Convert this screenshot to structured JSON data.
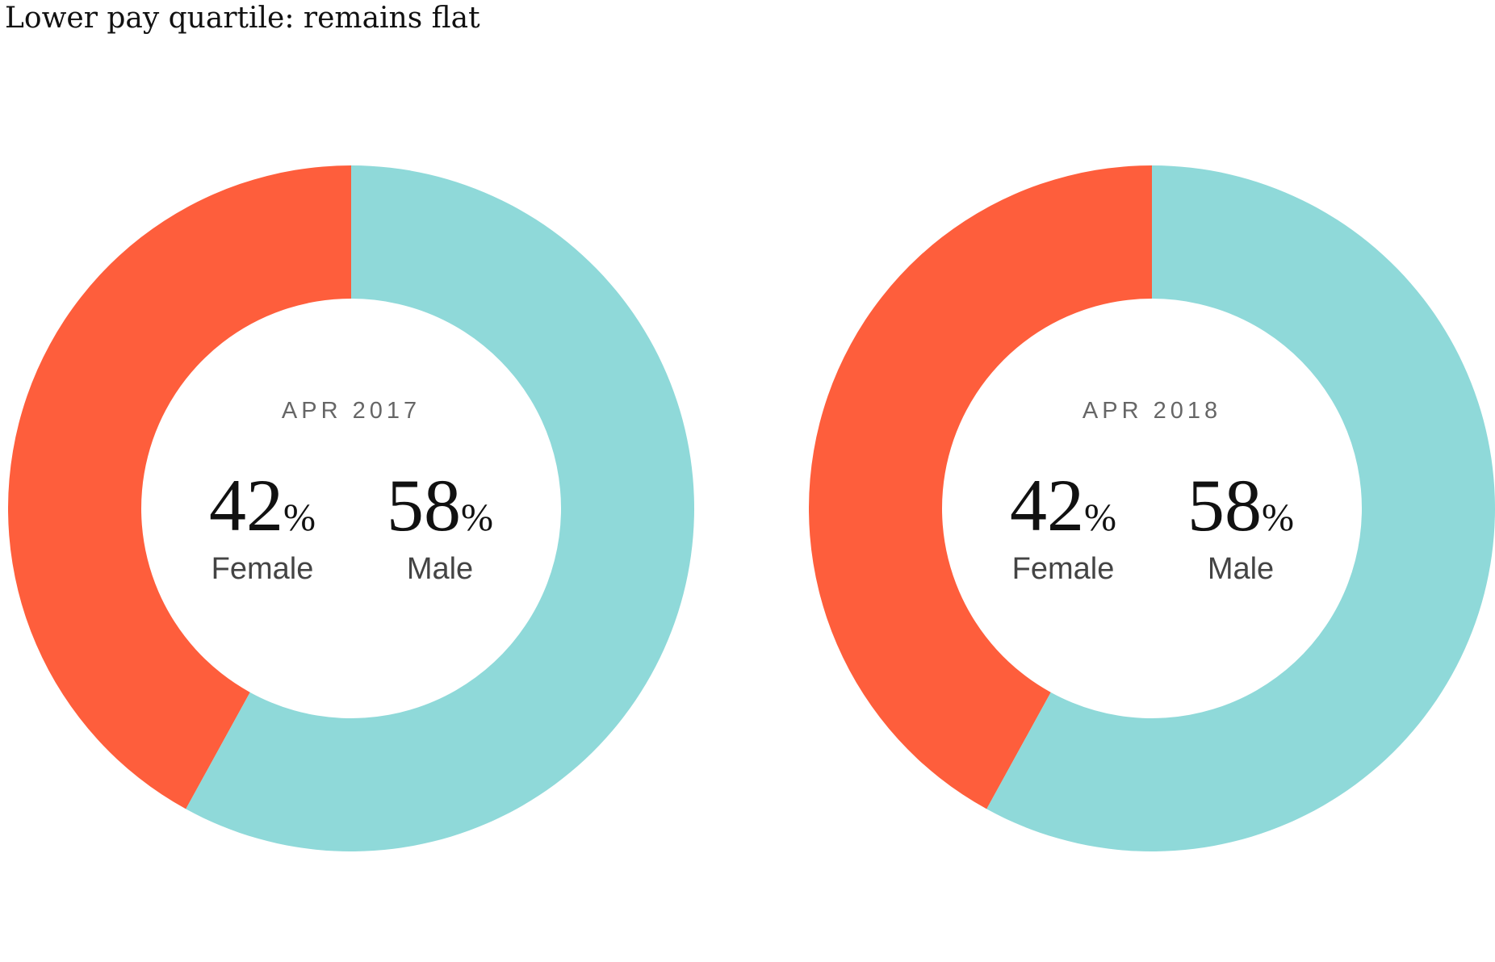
{
  "title": "Lower pay quartile: remains flat",
  "colors": {
    "female": "#FE5E3C",
    "male": "#8FD9D9"
  },
  "chart_data": [
    {
      "type": "pie",
      "subtitle": "APR 2017",
      "slices": [
        {
          "label": "Female",
          "value": 42,
          "color": "#FE5E3C"
        },
        {
          "label": "Male",
          "value": 58,
          "color": "#8FD9D9"
        }
      ],
      "percent_symbol": "%"
    },
    {
      "type": "pie",
      "subtitle": "APR 2018",
      "slices": [
        {
          "label": "Female",
          "value": 42,
          "color": "#FE5E3C"
        },
        {
          "label": "Male",
          "value": 58,
          "color": "#8FD9D9"
        }
      ],
      "percent_symbol": "%"
    }
  ]
}
